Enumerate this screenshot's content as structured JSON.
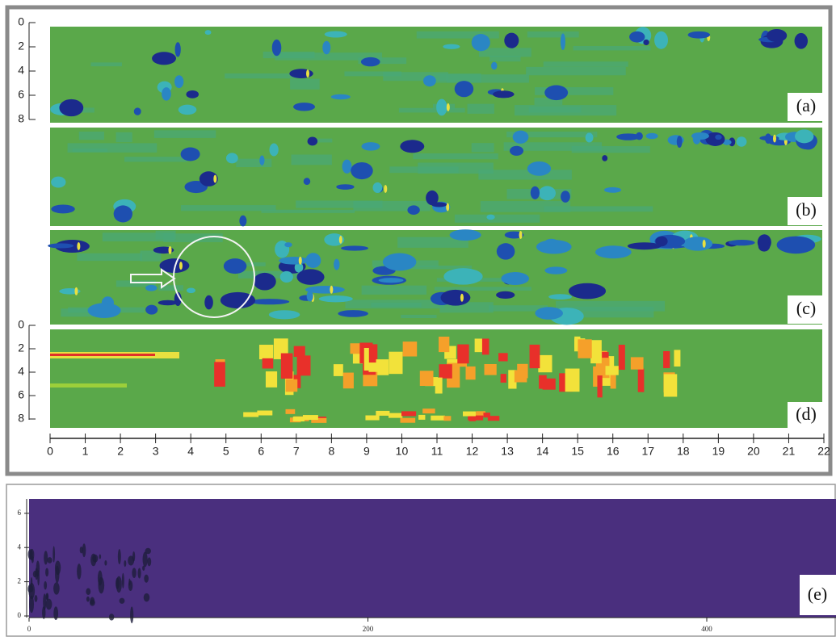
{
  "figure": {
    "panels": [
      {
        "label": "(a)"
      },
      {
        "label": "(b)"
      },
      {
        "label": "(c)"
      },
      {
        "label": "(d)"
      },
      {
        "label": "(e)"
      }
    ],
    "axis_a_yticks": [
      0,
      2,
      4,
      6,
      8
    ],
    "axis_d_yticks": [
      0,
      2,
      4,
      6,
      8
    ],
    "axis_top_xticks": [
      0,
      1,
      2,
      3,
      4,
      5,
      6,
      7,
      8,
      9,
      10,
      11,
      12,
      13,
      14,
      15,
      16,
      17,
      18,
      19,
      20,
      21,
      22
    ],
    "axis_e_yticks": [
      0,
      2,
      4,
      6
    ],
    "axis_e_xticks": [
      0,
      200,
      400
    ]
  }
}
